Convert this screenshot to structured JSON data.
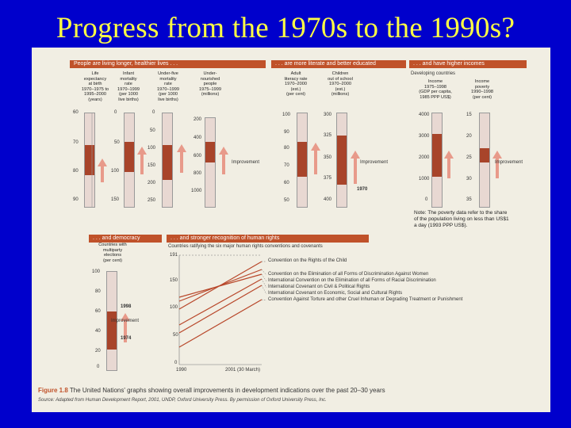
{
  "slide": {
    "title": "Progress from the 1970s to the 1990s?"
  },
  "sections": {
    "people": "People are living longer, healthier lives . . .",
    "literate": ". . . are more literate and better educated",
    "incomes": ". . . and have higher incomes",
    "democracy": ". . . and democracy",
    "human_rights": ". . . and stronger recognition of human rights"
  },
  "columns": {
    "life": "Life\nexpectancy\nat birth\n1970–1975 to\n1995–2000\n(years)",
    "infant": "Infant\nmortality\nrate\n1970–1999\n(per 1000\nlive births)",
    "under5": "Under-five\nmortality\nrate\n1970–1999\n(per 1000\nlive births)",
    "undernourished": "Under-\nnourished\npeople\n1975–1999\n(millions)",
    "literacy": "Adult\nliteracy rate\n1970–2000\n(est.)\n(per cent)",
    "children": "Children\nout of school\n1970–2000\n(est.)\n(millions)",
    "income": "Income\n1975–1998\n(GDP per capita,\n1985 PPP US$)",
    "poverty": "Income\npoverty\n1990–1998\n(per cent)",
    "multiparty": "Countries with\nmultiparty\nelections\n(per cent)"
  },
  "ticks": {
    "life": [
      "60",
      "70",
      "80",
      "90"
    ],
    "infant": [
      "0",
      "50",
      "100",
      "150"
    ],
    "under5": [
      "0",
      "50",
      "100",
      "150",
      "200",
      "250"
    ],
    "undernourished": [
      "200",
      "400",
      "600",
      "800",
      "1000"
    ],
    "literacy": [
      "100",
      "90",
      "80",
      "70",
      "60",
      "50"
    ],
    "children": [
      "300",
      "325",
      "350",
      "375",
      "400"
    ],
    "income": [
      "4000",
      "3000",
      "2000",
      "1000",
      "0"
    ],
    "poverty": [
      "15",
      "20",
      "25",
      "30",
      "35"
    ],
    "multiparty": [
      "100",
      "80",
      "60",
      "40",
      "20",
      "0"
    ],
    "rights": [
      "191",
      "150",
      "100",
      "50",
      "0"
    ],
    "rights_x": [
      "1990",
      "2001 (30 March)"
    ]
  },
  "labels": {
    "improvement": "Improvement",
    "developing": "Developing countries",
    "year_1970": "1970",
    "year_1998": "1998",
    "year_1974": "1974",
    "ratifying": "Countries ratifying the six major human rights conventions and covenants",
    "note": "Note: The poverty data refer to the share of the population living on less than US$1 a day (1993 PPP US$)."
  },
  "conventions": [
    "Convention on the Rights of the Child",
    "Convention on the Elimination of all Forms of Discrimination Against Women",
    "International Convention on the Elimination of all Forms of Racial Discrimination",
    "International Covenant on Civil & Political Rights",
    "International Covenant on Economic, Social and Cultural Rights",
    "Convention Against Torture and other Cruel Inhuman or Degrading Treatment or Punishment"
  ],
  "caption": {
    "figure": "Figure 1.8",
    "text": "The United Nations' graphs showing overall improvements in development indications over the past 20–30 years",
    "source": "Source: Adapted from Human Development Report, 2001, UNDP, Oxford University Press. By permission of Oxford University Press, Inc."
  },
  "colors": {
    "title": "#ffff44",
    "background": "#0000cc",
    "accent": "#c0522a",
    "fill": "#a8442a",
    "arrow": "#e89a8a"
  }
}
